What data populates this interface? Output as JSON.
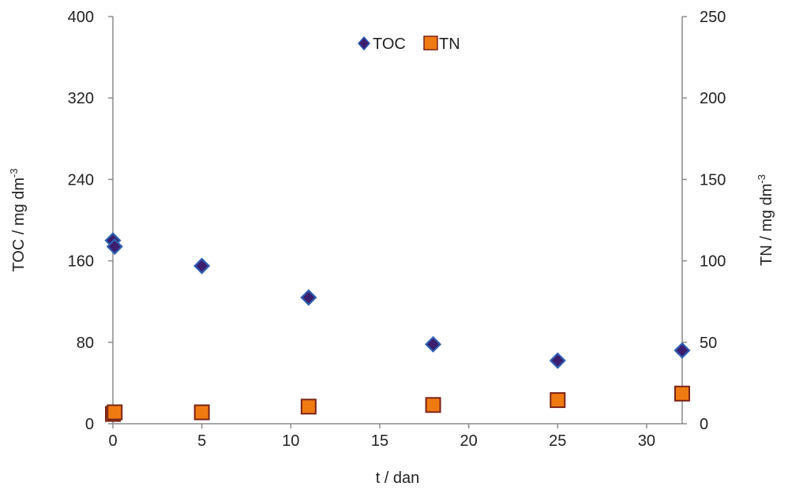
{
  "chart_data": {
    "type": "scatter",
    "xlabel": "t / dan",
    "ylabel_left": {
      "main": "TOC / mg dm",
      "sup": "-3"
    },
    "ylabel_right": {
      "main": "TN / mg dm",
      "sup": "-3"
    },
    "xlim": [
      0,
      32
    ],
    "ylim_left": [
      0,
      400
    ],
    "ylim_right": [
      0,
      250
    ],
    "x_ticks": [
      "0",
      "5",
      "10",
      "15",
      "20",
      "25",
      "30"
    ],
    "y_ticks_left": [
      "0",
      "80",
      "160",
      "240",
      "320",
      "400"
    ],
    "y_ticks_right": [
      "0",
      "50",
      "100",
      "150",
      "200",
      "250"
    ],
    "grid": false,
    "legend": {
      "placement": "top-center",
      "items": [
        "TOC",
        "TN"
      ]
    },
    "series": [
      {
        "name": "TOC",
        "axis": "left",
        "marker": "diamond",
        "fill": "#3b1f6e",
        "edge": "#2f5fb3",
        "points": [
          [
            0,
            180
          ],
          [
            0.1,
            174
          ],
          [
            5,
            155
          ],
          [
            11,
            124
          ],
          [
            18,
            78
          ],
          [
            25,
            62
          ],
          [
            32,
            72
          ]
        ]
      },
      {
        "name": "TN",
        "axis": "right",
        "marker": "square",
        "fill": "#f07a12",
        "edge": "#7a2418",
        "points": [
          [
            0,
            6
          ],
          [
            0.1,
            7
          ],
          [
            5,
            7
          ],
          [
            11,
            10.5
          ],
          [
            18,
            11.5
          ],
          [
            25,
            14.5
          ],
          [
            32,
            18.5
          ]
        ]
      }
    ]
  }
}
